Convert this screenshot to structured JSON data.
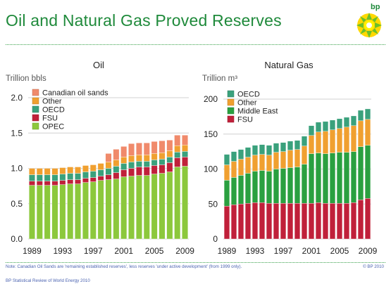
{
  "header": {
    "title": "Oil and Natural Gas Proved Reserves",
    "logo_text": "bp"
  },
  "footer": {
    "note": "Note: Canadian Oil Sands are 'remaining established reserves', less reserves 'under active development' (from 1999 only).",
    "copyright": "© BP 2010",
    "source": "BP Statistical Review of World Energy 2010"
  },
  "colors": {
    "brand_green": "#1f8a3b",
    "canadian_oil_sands": "#f08a6b",
    "other": "#f0a030",
    "oecd": "#3aa17c",
    "fsu": "#c0203a",
    "opec": "#8cc83c",
    "middle_east": "#2aa040"
  },
  "chart_data": [
    {
      "type": "bar",
      "stacked": true,
      "title": "Oil",
      "ylabel": "Trillion bbls",
      "ylim": [
        0,
        2.0
      ],
      "yticks": [
        "0.0",
        "0.5",
        "1.0",
        "1.5",
        "2.0"
      ],
      "xtick_labels": [
        "1989",
        "1993",
        "1997",
        "2001",
        "2005",
        "2009"
      ],
      "grid": true,
      "legend_position": "top-left",
      "x": [
        1989,
        1990,
        1991,
        1992,
        1993,
        1994,
        1995,
        1996,
        1997,
        1998,
        1999,
        2000,
        2001,
        2002,
        2003,
        2004,
        2005,
        2006,
        2007,
        2008,
        2009
      ],
      "series": [
        {
          "name": "OPEC",
          "color": "#8cc83c",
          "values": [
            0.76,
            0.76,
            0.76,
            0.76,
            0.77,
            0.78,
            0.78,
            0.8,
            0.81,
            0.83,
            0.84,
            0.85,
            0.88,
            0.89,
            0.9,
            0.9,
            0.92,
            0.93,
            0.95,
            1.02,
            1.03
          ]
        },
        {
          "name": "FSU",
          "color": "#c0203a",
          "values": [
            0.06,
            0.06,
            0.06,
            0.06,
            0.06,
            0.06,
            0.06,
            0.06,
            0.06,
            0.06,
            0.07,
            0.09,
            0.1,
            0.11,
            0.12,
            0.12,
            0.12,
            0.12,
            0.13,
            0.13,
            0.13
          ]
        },
        {
          "name": "OECD",
          "color": "#3aa17c",
          "values": [
            0.09,
            0.09,
            0.09,
            0.09,
            0.09,
            0.09,
            0.09,
            0.09,
            0.09,
            0.09,
            0.09,
            0.09,
            0.09,
            0.09,
            0.08,
            0.08,
            0.08,
            0.08,
            0.08,
            0.08,
            0.08
          ]
        },
        {
          "name": "Other",
          "color": "#f0a030",
          "values": [
            0.09,
            0.09,
            0.09,
            0.09,
            0.09,
            0.09,
            0.09,
            0.09,
            0.09,
            0.09,
            0.09,
            0.09,
            0.09,
            0.09,
            0.09,
            0.09,
            0.09,
            0.09,
            0.09,
            0.09,
            0.09
          ]
        },
        {
          "name": "Canadian oil sands",
          "color": "#f08a6b",
          "values": [
            0,
            0,
            0,
            0,
            0,
            0,
            0,
            0,
            0,
            0,
            0.12,
            0.15,
            0.15,
            0.17,
            0.17,
            0.17,
            0.17,
            0.17,
            0.15,
            0.15,
            0.14
          ]
        }
      ]
    },
    {
      "type": "bar",
      "stacked": true,
      "title": "Natural Gas",
      "ylabel": "Trillion m³",
      "ylim": [
        0,
        200
      ],
      "yticks": [
        "0",
        "50",
        "100",
        "150",
        "200"
      ],
      "xtick_labels": [
        "1989",
        "1993",
        "1997",
        "2001",
        "2005",
        "2009"
      ],
      "grid": true,
      "legend_position": "top-left",
      "x": [
        1989,
        1990,
        1991,
        1992,
        1993,
        1994,
        1995,
        1996,
        1997,
        1998,
        1999,
        2000,
        2001,
        2002,
        2003,
        2004,
        2005,
        2006,
        2007,
        2008,
        2009
      ],
      "series": [
        {
          "name": "FSU",
          "color": "#c0203a",
          "values": [
            47,
            49,
            50,
            51,
            52,
            52,
            51,
            51,
            51,
            51,
            51,
            51,
            51,
            52,
            51,
            51,
            51,
            51,
            52,
            56,
            58
          ]
        },
        {
          "name": "Middle East",
          "color": "#2aa040",
          "values": [
            37,
            39,
            41,
            43,
            45,
            46,
            46,
            49,
            50,
            51,
            52,
            56,
            71,
            71,
            71,
            72,
            73,
            73,
            73,
            76,
            76
          ]
        },
        {
          "name": "Other",
          "color": "#f0a030",
          "values": [
            22,
            23,
            23,
            23,
            23,
            23,
            23,
            24,
            24,
            25,
            25,
            26,
            26,
            30,
            32,
            33,
            34,
            36,
            37,
            37,
            37
          ]
        },
        {
          "name": "OECD",
          "color": "#3aa17c",
          "values": [
            15,
            14,
            14,
            14,
            14,
            14,
            14,
            13,
            13,
            13,
            13,
            14,
            14,
            14,
            14,
            14,
            14,
            14,
            14,
            15,
            15
          ]
        }
      ]
    }
  ]
}
